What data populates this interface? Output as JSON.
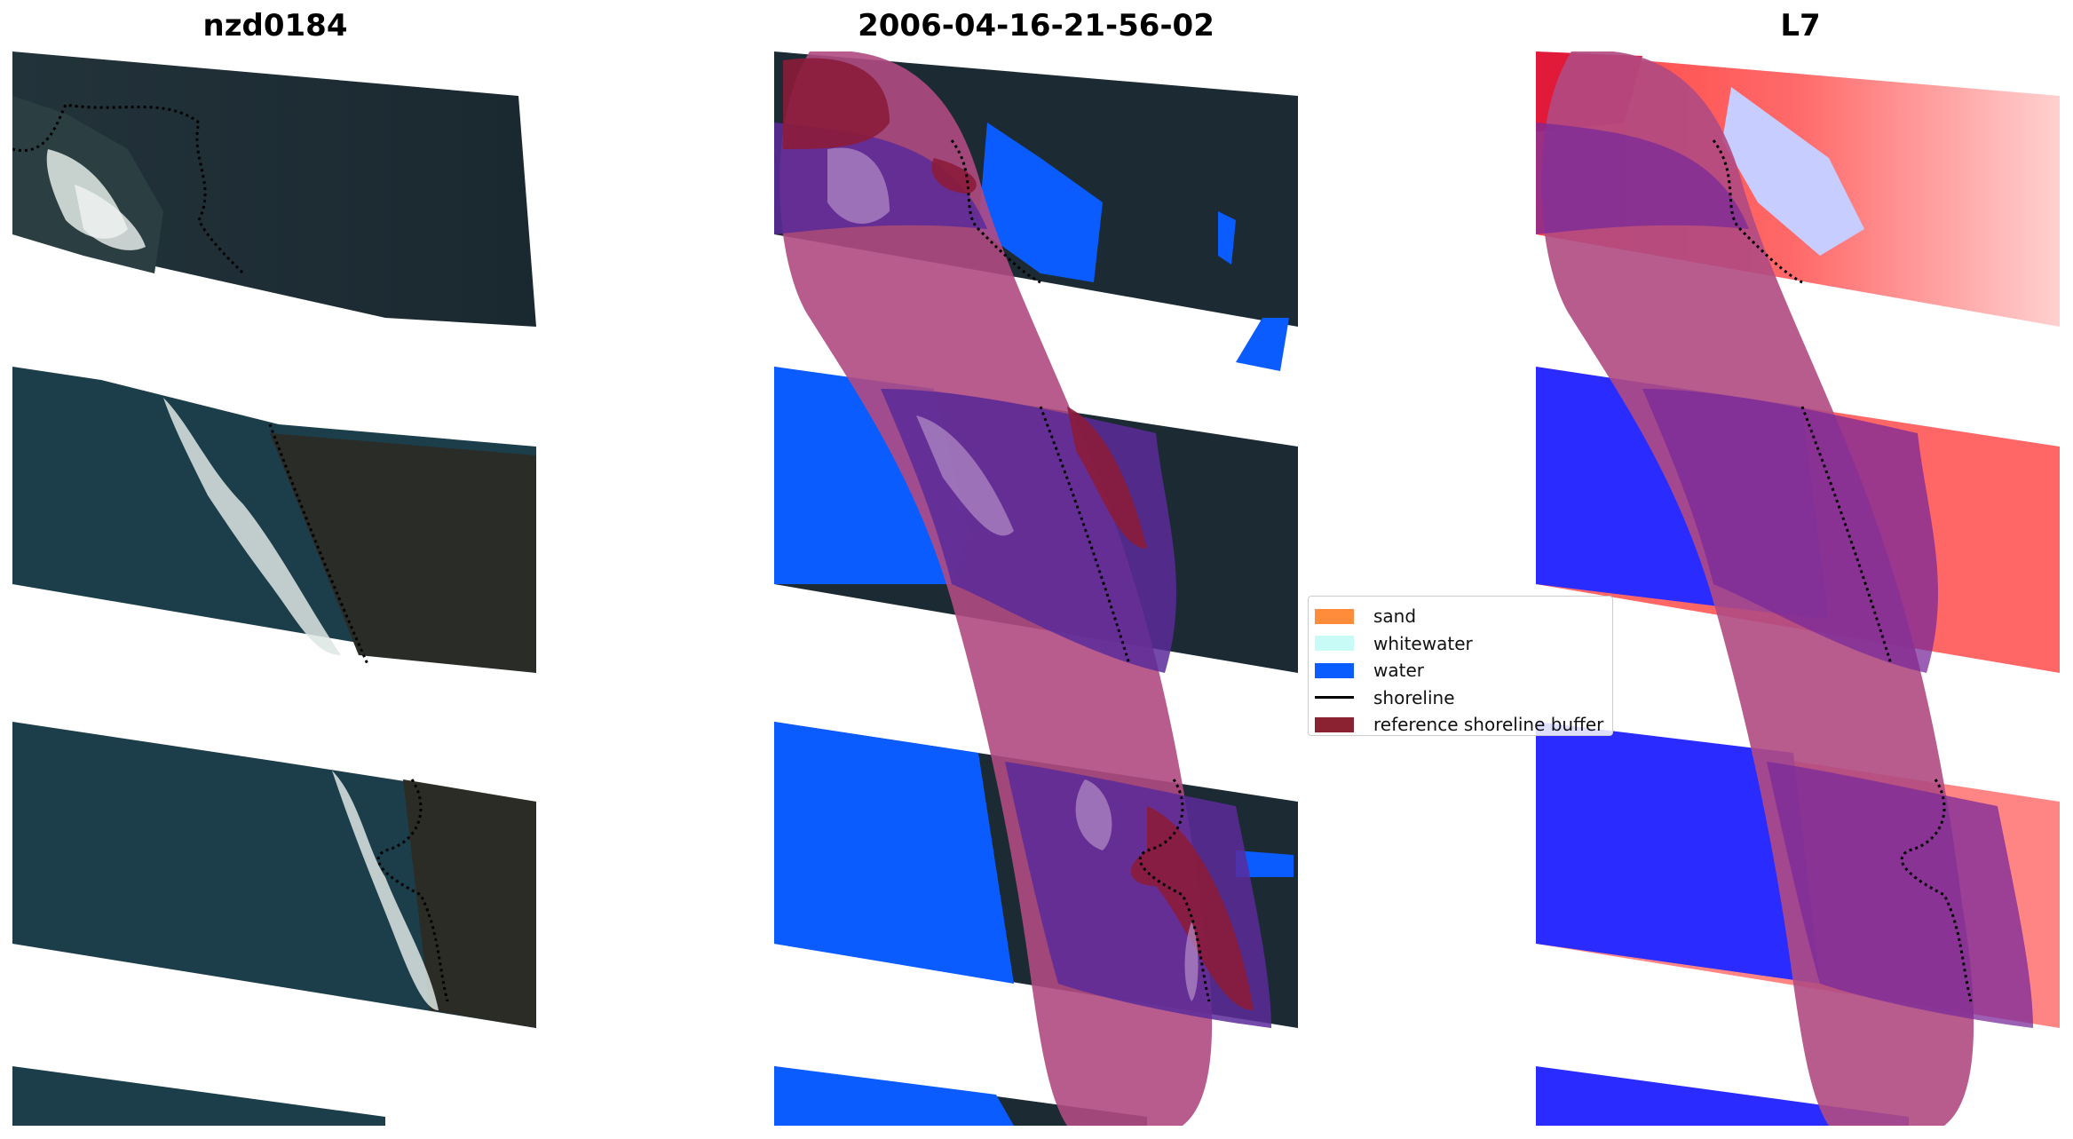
{
  "panels": [
    {
      "title": "nzd0184",
      "kind": "rgb-image"
    },
    {
      "title": "2006-04-16-21-56-02",
      "kind": "classified-image"
    },
    {
      "title": "L7",
      "kind": "index-image"
    }
  ],
  "legend": {
    "placement": "center",
    "items": [
      {
        "label": "sand",
        "type": "patch",
        "color": "#ff8c3a"
      },
      {
        "label": "whitewater",
        "type": "patch",
        "color": "#c8fbf5"
      },
      {
        "label": "water",
        "type": "patch",
        "color": "#0a5cff"
      },
      {
        "label": "shoreline",
        "type": "line",
        "color": "#000000"
      },
      {
        "label": "reference shoreline buffer",
        "type": "patch",
        "color": "#8b2232"
      }
    ]
  },
  "colors": {
    "land_dark": "#1c2a33",
    "sea": "#1d3f4e",
    "foam": "#e4ebe8",
    "water_class": "#0a5cff",
    "buffer_overlay": "#b04a82",
    "index_red": "#ff3030",
    "index_blue": "#2a2cff"
  }
}
